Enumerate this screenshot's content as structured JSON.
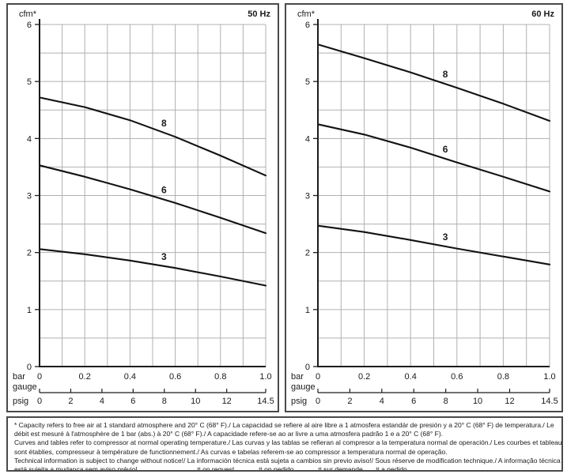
{
  "page": {
    "colors": {
      "frame": "#4a4a4a",
      "grid": "#b0b0b0",
      "axis": "#1c1c1c",
      "curve": "#121212",
      "text": "#1a1a1a"
    }
  },
  "chart_data": [
    {
      "type": "line",
      "title": "50 Hz",
      "ylabel": "cfm*",
      "x1_caption_lines": [
        "bar",
        "gauge"
      ],
      "x2_caption": "psig",
      "xlim": [
        0,
        1.0
      ],
      "ylim": [
        0,
        6
      ],
      "y_ticks": [
        0,
        1,
        2,
        3,
        4,
        5,
        6
      ],
      "x_ticks": [
        0,
        0.2,
        0.4,
        0.6,
        0.8,
        1.0
      ],
      "x_tick_labels": [
        "0",
        "0.2",
        "0.4",
        "0.6",
        "0.8",
        "1.0"
      ],
      "x2_max": 14.5,
      "x2_ticks": [
        0,
        2,
        4,
        6,
        8,
        10,
        12,
        14.5
      ],
      "x2_tick_labels": [
        "0",
        "2",
        "4",
        "6",
        "8",
        "10",
        "12",
        "14.5"
      ],
      "grid": {
        "on": true,
        "x_step": 0.1,
        "y_step": 0.5
      },
      "legend_position": "inline-curve-labels",
      "series": [
        {
          "name": "8",
          "label_x": 0.55,
          "x": [
            0,
            0.2,
            0.4,
            0.6,
            0.8,
            1.0
          ],
          "y": [
            4.72,
            4.55,
            4.32,
            4.03,
            3.7,
            3.35
          ]
        },
        {
          "name": "6",
          "label_x": 0.55,
          "x": [
            0,
            0.2,
            0.4,
            0.6,
            0.8,
            1.0
          ],
          "y": [
            3.53,
            3.33,
            3.11,
            2.87,
            2.61,
            2.34
          ]
        },
        {
          "name": "3",
          "label_x": 0.55,
          "x": [
            0,
            0.2,
            0.4,
            0.6,
            0.8,
            1.0
          ],
          "y": [
            2.06,
            1.97,
            1.86,
            1.73,
            1.58,
            1.42
          ]
        }
      ]
    },
    {
      "type": "line",
      "title": "60 Hz",
      "ylabel": "cfm*",
      "x1_caption_lines": [
        "bar",
        "gauge"
      ],
      "x2_caption": "psig",
      "xlim": [
        0,
        1.0
      ],
      "ylim": [
        0,
        6
      ],
      "y_ticks": [
        0,
        1,
        2,
        3,
        4,
        5,
        6
      ],
      "x_ticks": [
        0,
        0.2,
        0.4,
        0.6,
        0.8,
        1.0
      ],
      "x_tick_labels": [
        "0",
        "0.2",
        "0.4",
        "0.6",
        "0.8",
        "1.0"
      ],
      "x2_max": 14.5,
      "x2_ticks": [
        0,
        2,
        4,
        6,
        8,
        10,
        12,
        14.5
      ],
      "x2_tick_labels": [
        "0",
        "2",
        "4",
        "6",
        "8",
        "10",
        "12",
        "14.5"
      ],
      "grid": {
        "on": true,
        "x_step": 0.1,
        "y_step": 0.5
      },
      "legend_position": "inline-curve-labels",
      "series": [
        {
          "name": "8",
          "label_x": 0.55,
          "x": [
            0,
            0.2,
            0.4,
            0.6,
            0.8,
            1.0
          ],
          "y": [
            5.65,
            5.41,
            5.16,
            4.89,
            4.61,
            4.31
          ]
        },
        {
          "name": "6",
          "label_x": 0.55,
          "x": [
            0,
            0.2,
            0.4,
            0.6,
            0.8,
            1.0
          ],
          "y": [
            4.25,
            4.07,
            3.84,
            3.58,
            3.33,
            3.07
          ]
        },
        {
          "name": "3",
          "label_x": 0.55,
          "x": [
            0,
            0.2,
            0.4,
            0.6,
            0.8,
            1.0
          ],
          "y": [
            2.47,
            2.36,
            2.22,
            2.07,
            1.93,
            1.79
          ]
        }
      ]
    }
  ],
  "footer": {
    "lines": [
      "* Capacity refers to free air at 1 standard atmosphere and 20° C (68° F)./ La capacidad se refiere al aire libre a 1 atmosfera estandár de presión y a 20° C (68° F) de temperatura./ Le",
      "débit est mesuré à l'atmosphère de 1 bar (abs.) à 20° C (68° F)./ A capacidade refere-se ao ar livre a uma atmosfera padrão 1 e a 20° C (68° F).",
      "Curves and tables refer to compressor at normal operating temperature./ Las curvas y las tablas se refieran al compresor a la temperatura normal de operación./ Les courbes et tableaux",
      "sont établies, compresseur à température de functionnement./ As curvas e tabelas referem-se ao compressor a temperatura normal de operação.",
      "Technical information is subject to change without notice!/ La información técnica está sujeta a cambios sin previo aviso!/ Sous réserve de modification technique./ A informação técnica"
    ],
    "last_line": "está sujeita a mudança sem aviso prévio!",
    "hash_items": [
      "# on request",
      "# on pedido",
      "# sur demande",
      "# a pedido"
    ]
  }
}
